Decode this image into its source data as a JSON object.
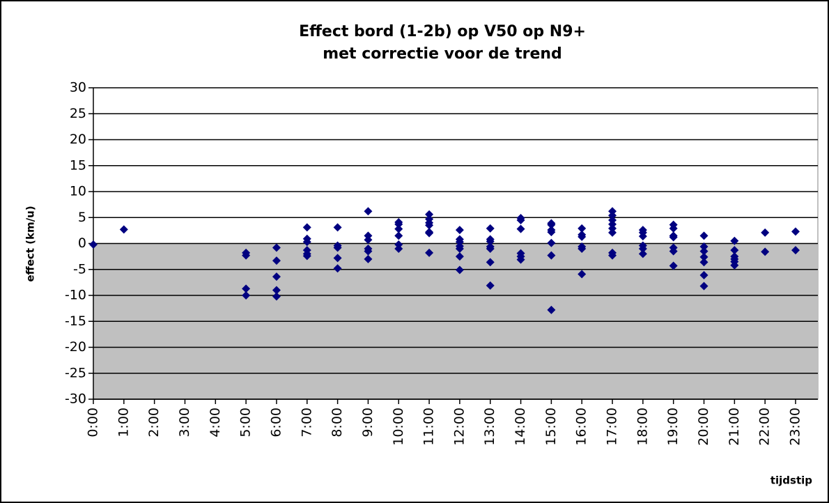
{
  "chart_data": {
    "type": "scatter",
    "title": "Effect bord (1-2b) op V50 op N9+",
    "subtitle": "met correctie voor de trend",
    "x_label": "tijdstip",
    "y_label": "effect (km/u)",
    "xlim": [
      0,
      23.73
    ],
    "ylim": [
      -30,
      30
    ],
    "yticks": [
      -30,
      -25,
      -20,
      -15,
      -10,
      -5,
      0,
      5,
      10,
      15,
      20,
      25,
      30
    ],
    "xticks": [
      {
        "value": 0,
        "label": "0:00"
      },
      {
        "value": 1,
        "label": "1:00"
      },
      {
        "value": 2,
        "label": "2:00"
      },
      {
        "value": 3,
        "label": "3:00"
      },
      {
        "value": 4,
        "label": "4:00"
      },
      {
        "value": 5,
        "label": "5:00"
      },
      {
        "value": 6,
        "label": "6:00"
      },
      {
        "value": 7,
        "label": "7:00"
      },
      {
        "value": 8,
        "label": "8:00"
      },
      {
        "value": 9,
        "label": "9:00"
      },
      {
        "value": 10,
        "label": "10:00"
      },
      {
        "value": 11,
        "label": "11:00"
      },
      {
        "value": 12,
        "label": "12:00"
      },
      {
        "value": 13,
        "label": "13:00"
      },
      {
        "value": 14,
        "label": "14:00"
      },
      {
        "value": 15,
        "label": "15:00"
      },
      {
        "value": 16,
        "label": "16:00"
      },
      {
        "value": 17,
        "label": "17:00"
      },
      {
        "value": 18,
        "label": "18:00"
      },
      {
        "value": 19,
        "label": "19:00"
      },
      {
        "value": 20,
        "label": "20:00"
      },
      {
        "value": 21,
        "label": "21:00"
      },
      {
        "value": 22,
        "label": "22:00"
      },
      {
        "value": 23,
        "label": "23:00"
      }
    ],
    "grid": true,
    "below_zero_fill": "#c0c0c0",
    "color": "#000080",
    "x": [
      0,
      1,
      5,
      5,
      5,
      5,
      6,
      6,
      6,
      6,
      6,
      7,
      7,
      7,
      7,
      7,
      7,
      8,
      8,
      8,
      8,
      8,
      9,
      9,
      9,
      9,
      9,
      9,
      10,
      10,
      10,
      10,
      10,
      10,
      11,
      11,
      11,
      11,
      11,
      11,
      11,
      12,
      12,
      12,
      12,
      12,
      12,
      12,
      13,
      13,
      13,
      13,
      13,
      13,
      13,
      14,
      14,
      14,
      14,
      14,
      14,
      15,
      15,
      15,
      15,
      15,
      15,
      15,
      16,
      16,
      16,
      16,
      16,
      16,
      17,
      17,
      17,
      17,
      17,
      17,
      17,
      17,
      18,
      18,
      18,
      18,
      18,
      18,
      19,
      19,
      19,
      19,
      19,
      19,
      19,
      20,
      20,
      20,
      20,
      20,
      20,
      20,
      21,
      21,
      21,
      21,
      21,
      21,
      22,
      22,
      23,
      23
    ],
    "y": [
      -0.2,
      2.7,
      -1.8,
      -2.3,
      -8.7,
      -10.0,
      -0.8,
      -3.3,
      -6.4,
      -9.0,
      -10.2,
      3.1,
      0.9,
      0.3,
      -1.3,
      -2.0,
      -2.4,
      3.1,
      -0.4,
      -0.8,
      -2.8,
      -4.8,
      6.2,
      1.5,
      0.7,
      -1.0,
      -1.5,
      -3.0,
      4.1,
      3.7,
      2.8,
      1.5,
      -0.2,
      -1.0,
      5.6,
      4.7,
      4.0,
      3.5,
      2.2,
      2.0,
      -1.8,
      2.6,
      0.8,
      0.3,
      -0.5,
      -1.0,
      -2.5,
      -5.1,
      2.9,
      0.8,
      0.4,
      -0.6,
      -1.0,
      -3.6,
      -8.1,
      4.9,
      4.5,
      2.8,
      -1.9,
      -2.5,
      -3.1,
      3.9,
      3.6,
      2.6,
      2.2,
      0.1,
      -2.3,
      -12.8,
      2.9,
      1.7,
      1.3,
      -0.6,
      -1.0,
      -5.9,
      6.2,
      5.4,
      4.5,
      3.7,
      2.9,
      2.1,
      -1.8,
      -2.3,
      2.6,
      2.1,
      1.4,
      -0.4,
      -1.0,
      -2.0,
      3.6,
      2.9,
      1.5,
      1.2,
      -0.8,
      -1.5,
      -4.3,
      1.5,
      -0.6,
      -1.5,
      -2.6,
      -3.6,
      -6.1,
      -8.2,
      0.5,
      -1.3,
      -2.5,
      -3.0,
      -3.5,
      -4.2,
      2.1,
      -1.6,
      2.3,
      -1.3
    ]
  }
}
